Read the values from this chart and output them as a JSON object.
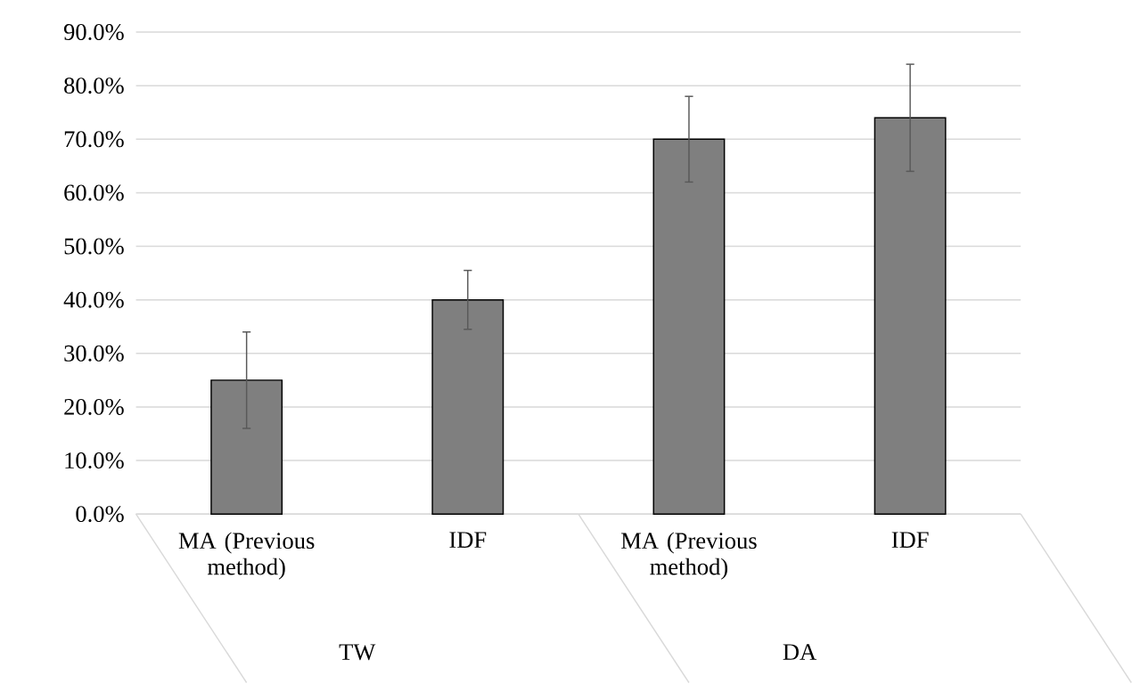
{
  "chart_data": {
    "type": "bar",
    "categories": [
      "MA (Previous method)",
      "IDF",
      "MA (Previous method)",
      "IDF"
    ],
    "values": [
      25,
      40,
      70,
      74
    ],
    "errors": [
      9,
      5.5,
      8,
      10
    ],
    "color": "#7f7f7f",
    "ylim": [
      0,
      90
    ],
    "yticks": [
      {
        "value": 0,
        "label": "0.0%"
      },
      {
        "value": 10,
        "label": "10.0%"
      },
      {
        "value": 20,
        "label": "20.0%"
      },
      {
        "value": 30,
        "label": "30.0%"
      },
      {
        "value": 40,
        "label": "40.0%"
      },
      {
        "value": 50,
        "label": "50.0%"
      },
      {
        "value": 60,
        "label": "60.0%"
      },
      {
        "value": 70,
        "label": "70.0%"
      },
      {
        "value": 80,
        "label": "80.0%"
      },
      {
        "value": 90,
        "label": "90.0%"
      }
    ],
    "grid": "y",
    "annotations": [
      "TW",
      "DA"
    ]
  }
}
